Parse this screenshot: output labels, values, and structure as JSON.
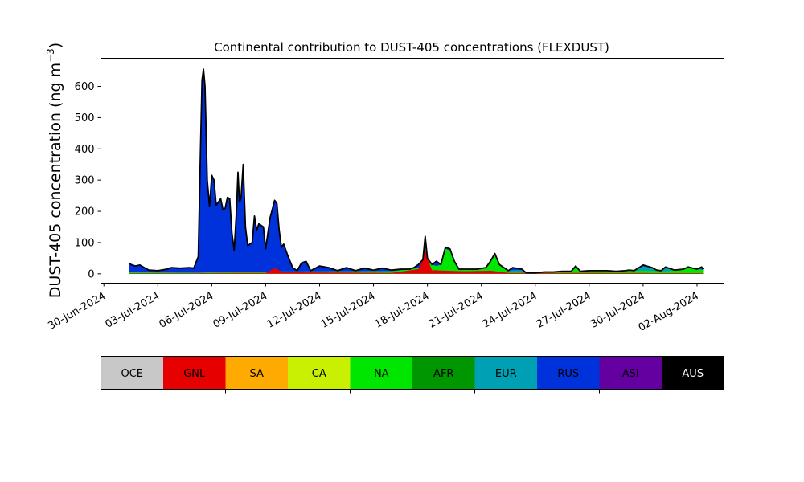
{
  "chart_data": {
    "type": "area",
    "title": "Continental contribution to DUST-405 concentrations (FLEXDUST)",
    "ylabel_main": "DUST-405 concentration (ng m",
    "ylabel_sup": "−3",
    "ylabel_close": ")",
    "xlim": [
      "2024-06-29T20:00",
      "2024-08-03T12:00"
    ],
    "ylim": [
      -30,
      690
    ],
    "xticks": [
      {
        "date": "2024-06-30",
        "label": "30-Jun-2024"
      },
      {
        "date": "2024-07-03",
        "label": "03-Jul-2024"
      },
      {
        "date": "2024-07-06",
        "label": "06-Jul-2024"
      },
      {
        "date": "2024-07-09",
        "label": "09-Jul-2024"
      },
      {
        "date": "2024-07-12",
        "label": "12-Jul-2024"
      },
      {
        "date": "2024-07-15",
        "label": "15-Jul-2024"
      },
      {
        "date": "2024-07-18",
        "label": "18-Jul-2024"
      },
      {
        "date": "2024-07-21",
        "label": "21-Jul-2024"
      },
      {
        "date": "2024-07-24",
        "label": "24-Jul-2024"
      },
      {
        "date": "2024-07-27",
        "label": "27-Jul-2024"
      },
      {
        "date": "2024-07-30",
        "label": "30-Jul-2024"
      },
      {
        "date": "2024-08-02",
        "label": "02-Aug-2024"
      }
    ],
    "yticks": [
      0,
      100,
      200,
      300,
      400,
      500,
      600
    ],
    "stack_order": [
      "GNL",
      "NA",
      "EUR",
      "RUS"
    ],
    "total_points": [
      [
        "2024-07-01T09:00",
        35
      ],
      [
        "2024-07-01T12:00",
        30
      ],
      [
        "2024-07-01T18:00",
        25
      ],
      [
        "2024-07-02T00:00",
        28
      ],
      [
        "2024-07-02T06:00",
        20
      ],
      [
        "2024-07-02T12:00",
        12
      ],
      [
        "2024-07-03T00:00",
        10
      ],
      [
        "2024-07-03T12:00",
        15
      ],
      [
        "2024-07-03T18:00",
        20
      ],
      [
        "2024-07-04T06:00",
        18
      ],
      [
        "2024-07-04T18:00",
        20
      ],
      [
        "2024-07-05T00:00",
        18
      ],
      [
        "2024-07-05T06:00",
        55
      ],
      [
        "2024-07-05T09:00",
        400
      ],
      [
        "2024-07-05T11:00",
        620
      ],
      [
        "2024-07-05T13:00",
        655
      ],
      [
        "2024-07-05T15:00",
        600
      ],
      [
        "2024-07-05T18:00",
        300
      ],
      [
        "2024-07-05T21:00",
        215
      ],
      [
        "2024-07-06T00:00",
        315
      ],
      [
        "2024-07-06T03:00",
        300
      ],
      [
        "2024-07-06T06:00",
        220
      ],
      [
        "2024-07-06T12:00",
        240
      ],
      [
        "2024-07-06T15:00",
        205
      ],
      [
        "2024-07-06T18:00",
        210
      ],
      [
        "2024-07-06T21:00",
        245
      ],
      [
        "2024-07-07T00:00",
        240
      ],
      [
        "2024-07-07T03:00",
        130
      ],
      [
        "2024-07-07T06:00",
        75
      ],
      [
        "2024-07-07T09:00",
        200
      ],
      [
        "2024-07-07T11:00",
        325
      ],
      [
        "2024-07-07T13:00",
        230
      ],
      [
        "2024-07-07T15:00",
        240
      ],
      [
        "2024-07-07T18:00",
        350
      ],
      [
        "2024-07-07T21:00",
        150
      ],
      [
        "2024-07-08T00:00",
        90
      ],
      [
        "2024-07-08T06:00",
        100
      ],
      [
        "2024-07-08T09:00",
        185
      ],
      [
        "2024-07-08T12:00",
        140
      ],
      [
        "2024-07-08T15:00",
        160
      ],
      [
        "2024-07-08T21:00",
        150
      ],
      [
        "2024-07-09T00:00",
        80
      ],
      [
        "2024-07-09T06:00",
        180
      ],
      [
        "2024-07-09T12:00",
        235
      ],
      [
        "2024-07-09T15:00",
        225
      ],
      [
        "2024-07-09T18:00",
        140
      ],
      [
        "2024-07-09T21:00",
        85
      ],
      [
        "2024-07-10T00:00",
        95
      ],
      [
        "2024-07-10T06:00",
        55
      ],
      [
        "2024-07-10T12:00",
        20
      ],
      [
        "2024-07-10T18:00",
        10
      ],
      [
        "2024-07-11T00:00",
        35
      ],
      [
        "2024-07-11T06:00",
        40
      ],
      [
        "2024-07-11T12:00",
        10
      ],
      [
        "2024-07-12T00:00",
        25
      ],
      [
        "2024-07-12T12:00",
        20
      ],
      [
        "2024-07-13T00:00",
        10
      ],
      [
        "2024-07-13T12:00",
        20
      ],
      [
        "2024-07-14T00:00",
        10
      ],
      [
        "2024-07-14T12:00",
        18
      ],
      [
        "2024-07-15T00:00",
        12
      ],
      [
        "2024-07-15T12:00",
        18
      ],
      [
        "2024-07-16T00:00",
        12
      ],
      [
        "2024-07-16T12:00",
        15
      ],
      [
        "2024-07-17T00:00",
        15
      ],
      [
        "2024-07-17T06:00",
        20
      ],
      [
        "2024-07-17T12:00",
        30
      ],
      [
        "2024-07-17T18:00",
        45
      ],
      [
        "2024-07-17T21:00",
        120
      ],
      [
        "2024-07-18T00:00",
        50
      ],
      [
        "2024-07-18T06:00",
        30
      ],
      [
        "2024-07-18T12:00",
        40
      ],
      [
        "2024-07-18T18:00",
        30
      ],
      [
        "2024-07-19T00:00",
        85
      ],
      [
        "2024-07-19T06:00",
        80
      ],
      [
        "2024-07-19T12:00",
        40
      ],
      [
        "2024-07-19T18:00",
        15
      ],
      [
        "2024-07-20T06:00",
        15
      ],
      [
        "2024-07-20T18:00",
        15
      ],
      [
        "2024-07-21T06:00",
        20
      ],
      [
        "2024-07-21T12:00",
        40
      ],
      [
        "2024-07-21T18:00",
        65
      ],
      [
        "2024-07-22T00:00",
        30
      ],
      [
        "2024-07-22T12:00",
        10
      ],
      [
        "2024-07-22T18:00",
        20
      ],
      [
        "2024-07-23T06:00",
        15
      ],
      [
        "2024-07-23T12:00",
        3
      ],
      [
        "2024-07-24T00:00",
        3
      ],
      [
        "2024-07-24T12:00",
        6
      ],
      [
        "2024-07-25T00:00",
        6
      ],
      [
        "2024-07-25T12:00",
        8
      ],
      [
        "2024-07-26T00:00",
        8
      ],
      [
        "2024-07-26T06:00",
        25
      ],
      [
        "2024-07-26T12:00",
        8
      ],
      [
        "2024-07-27T00:00",
        10
      ],
      [
        "2024-07-27T12:00",
        10
      ],
      [
        "2024-07-28T00:00",
        10
      ],
      [
        "2024-07-28T12:00",
        8
      ],
      [
        "2024-07-29T00:00",
        10
      ],
      [
        "2024-07-29T06:00",
        12
      ],
      [
        "2024-07-29T12:00",
        10
      ],
      [
        "2024-07-30T00:00",
        28
      ],
      [
        "2024-07-30T12:00",
        20
      ],
      [
        "2024-07-30T18:00",
        12
      ],
      [
        "2024-07-31T00:00",
        10
      ],
      [
        "2024-07-31T06:00",
        22
      ],
      [
        "2024-07-31T18:00",
        12
      ],
      [
        "2024-08-01T06:00",
        15
      ],
      [
        "2024-08-01T12:00",
        22
      ],
      [
        "2024-08-01T18:00",
        18
      ],
      [
        "2024-08-02T00:00",
        15
      ],
      [
        "2024-08-02T06:00",
        22
      ],
      [
        "2024-08-02T08:00",
        15
      ]
    ],
    "series": [
      {
        "name": "GNL",
        "points": [
          [
            "2024-07-01T09:00",
            2
          ],
          [
            "2024-07-05T00:00",
            2
          ],
          [
            "2024-07-09T00:00",
            3
          ],
          [
            "2024-07-09T12:00",
            18
          ],
          [
            "2024-07-10T00:00",
            5
          ],
          [
            "2024-07-16T00:00",
            3
          ],
          [
            "2024-07-17T12:00",
            15
          ],
          [
            "2024-07-17T21:00",
            80
          ],
          [
            "2024-07-18T06:00",
            12
          ],
          [
            "2024-07-19T00:00",
            10
          ],
          [
            "2024-07-20T00:00",
            8
          ],
          [
            "2024-07-21T12:00",
            10
          ],
          [
            "2024-07-22T12:00",
            3
          ],
          [
            "2024-08-02T08:00",
            2
          ]
        ]
      },
      {
        "name": "NA",
        "points": [
          [
            "2024-07-01T09:00",
            4
          ],
          [
            "2024-07-05T00:00",
            3
          ],
          [
            "2024-07-10T00:00",
            7
          ],
          [
            "2024-07-16T00:00",
            8
          ],
          [
            "2024-07-17T18:00",
            20
          ],
          [
            "2024-07-17T21:00",
            85
          ],
          [
            "2024-07-18T12:00",
            25
          ],
          [
            "2024-07-19T00:00",
            80
          ],
          [
            "2024-07-19T06:00",
            75
          ],
          [
            "2024-07-20T00:00",
            13
          ],
          [
            "2024-07-21T18:00",
            60
          ],
          [
            "2024-07-22T12:00",
            8
          ],
          [
            "2024-07-23T12:00",
            3
          ],
          [
            "2024-07-26T06:00",
            20
          ],
          [
            "2024-07-27T00:00",
            8
          ],
          [
            "2024-07-30T00:00",
            10
          ],
          [
            "2024-07-31T12:00",
            8
          ],
          [
            "2024-08-01T12:00",
            20
          ],
          [
            "2024-08-02T08:00",
            13
          ]
        ]
      },
      {
        "name": "EUR",
        "points": [
          [
            "2024-07-01T09:00",
            5
          ],
          [
            "2024-07-05T00:00",
            4
          ],
          [
            "2024-07-10T00:00",
            8
          ],
          [
            "2024-07-16T00:00",
            9
          ],
          [
            "2024-07-20T00:00",
            14
          ],
          [
            "2024-07-27T00:00",
            9
          ],
          [
            "2024-07-30T00:00",
            24
          ],
          [
            "2024-07-31T06:00",
            18
          ],
          [
            "2024-08-02T08:00",
            14
          ]
        ]
      }
    ],
    "legend": [
      {
        "name": "OCE",
        "color": "#c8c8c8",
        "text_color": "#000000"
      },
      {
        "name": "GNL",
        "color": "#e60000",
        "text_color": "#000000"
      },
      {
        "name": "SA",
        "color": "#ffaa00",
        "text_color": "#000000"
      },
      {
        "name": "CA",
        "color": "#c8f000",
        "text_color": "#000000"
      },
      {
        "name": "NA",
        "color": "#00e600",
        "text_color": "#000000"
      },
      {
        "name": "AFR",
        "color": "#009600",
        "text_color": "#000000"
      },
      {
        "name": "EUR",
        "color": "#00a0b4",
        "text_color": "#000000"
      },
      {
        "name": "RUS",
        "color": "#0032dc",
        "text_color": "#000000"
      },
      {
        "name": "ASI",
        "color": "#6400a0",
        "text_color": "#000000"
      },
      {
        "name": "AUS",
        "color": "#000000",
        "text_color": "#ffffff"
      }
    ],
    "grid": false,
    "legend_placement": "below"
  }
}
